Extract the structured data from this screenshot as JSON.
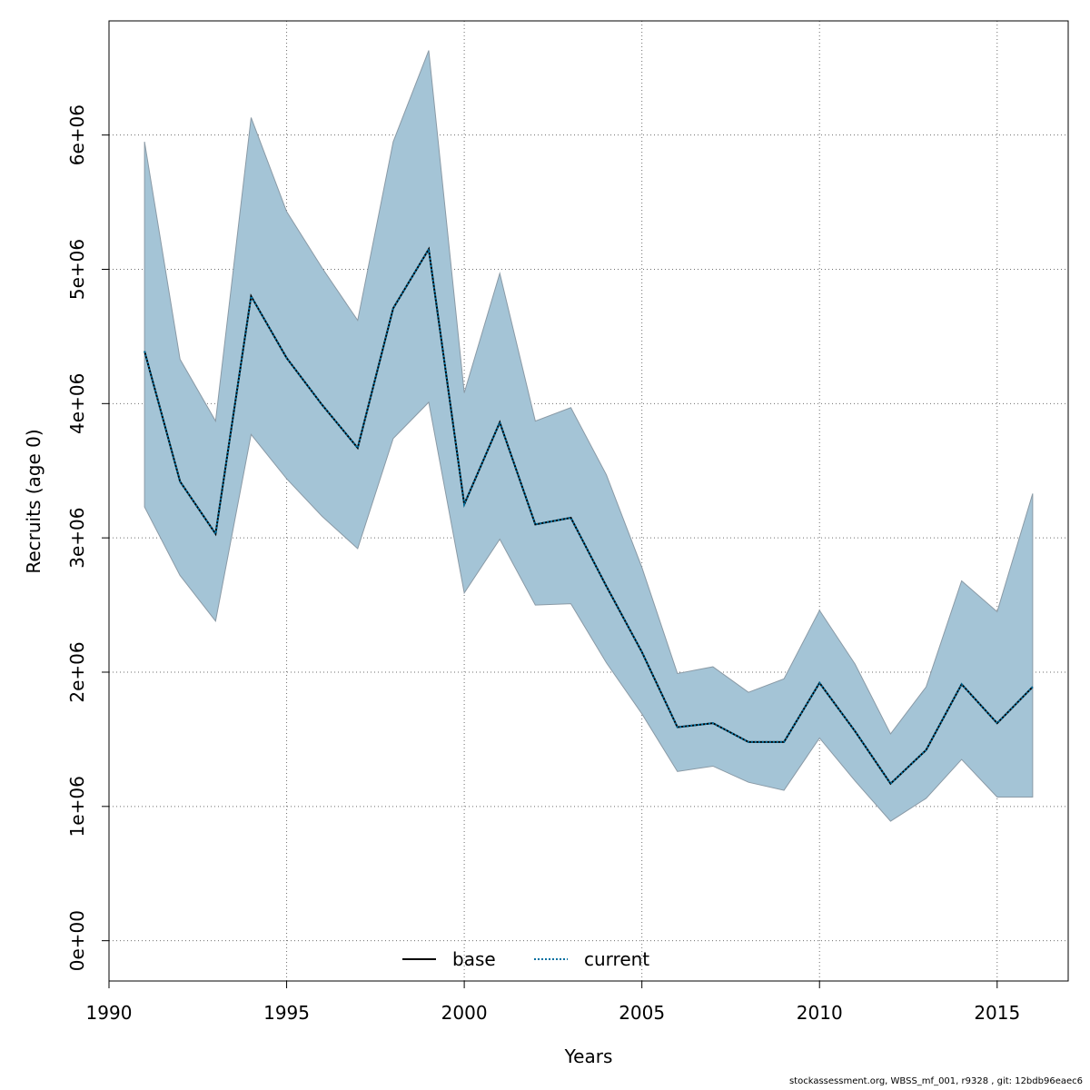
{
  "chart_data": {
    "type": "area",
    "xlabel": "Years",
    "ylabel": "Recruits (age 0)",
    "xlim": [
      1990,
      2017
    ],
    "ylim": [
      -300000,
      6850000
    ],
    "xticks": [
      1990,
      1995,
      2000,
      2005,
      2010,
      2015
    ],
    "xtick_labels": [
      "1990",
      "1995",
      "2000",
      "2005",
      "2010",
      "2015"
    ],
    "yticks": [
      0,
      1000000,
      2000000,
      3000000,
      4000000,
      5000000,
      6000000
    ],
    "ytick_labels": [
      "0e+00",
      "1e+06",
      "2e+06",
      "3e+06",
      "4e+06",
      "5e+06",
      "6e+06"
    ],
    "grid": true,
    "legend_position": "bottom-center",
    "x": [
      1991,
      1992,
      1993,
      1994,
      1995,
      1996,
      1997,
      1998,
      1999,
      2000,
      2001,
      2002,
      2003,
      2004,
      2005,
      2006,
      2007,
      2008,
      2009,
      2010,
      2011,
      2012,
      2013,
      2014,
      2015,
      2016
    ],
    "band": {
      "color": "#a4c4d6",
      "upper": [
        5950000,
        4330000,
        3870000,
        6130000,
        5430000,
        5010000,
        4620000,
        5950000,
        6630000,
        4080000,
        4970000,
        3870000,
        3970000,
        3470000,
        2780000,
        1990000,
        2040000,
        1850000,
        1950000,
        2460000,
        2060000,
        1540000,
        1890000,
        2680000,
        2450000,
        3330000
      ],
      "lower": [
        3230000,
        2720000,
        2380000,
        3770000,
        3440000,
        3160000,
        2920000,
        3740000,
        4010000,
        2590000,
        2990000,
        2500000,
        2510000,
        2070000,
        1690000,
        1260000,
        1300000,
        1180000,
        1120000,
        1510000,
        1190000,
        890000,
        1060000,
        1350000,
        1070000,
        1070000
      ]
    },
    "series": [
      {
        "name": "base",
        "color": "#000000",
        "dash": "solid",
        "values": [
          4390000,
          3420000,
          3030000,
          4800000,
          4340000,
          3990000,
          3670000,
          4710000,
          5150000,
          3250000,
          3860000,
          3100000,
          3150000,
          2640000,
          2150000,
          1590000,
          1620000,
          1480000,
          1480000,
          1920000,
          1560000,
          1170000,
          1420000,
          1910000,
          1620000,
          1890000
        ]
      },
      {
        "name": "current",
        "color": "#0070a0",
        "dash": "dotted",
        "values": [
          4390000,
          3420000,
          3030000,
          4800000,
          4340000,
          3990000,
          3670000,
          4710000,
          5150000,
          3250000,
          3860000,
          3100000,
          3150000,
          2640000,
          2150000,
          1590000,
          1620000,
          1480000,
          1480000,
          1920000,
          1560000,
          1170000,
          1420000,
          1910000,
          1620000,
          1890000
        ]
      }
    ]
  },
  "footer": "stockassessment.org, WBSS_mf_001, r9328 , git: 12bdb96eaec6"
}
